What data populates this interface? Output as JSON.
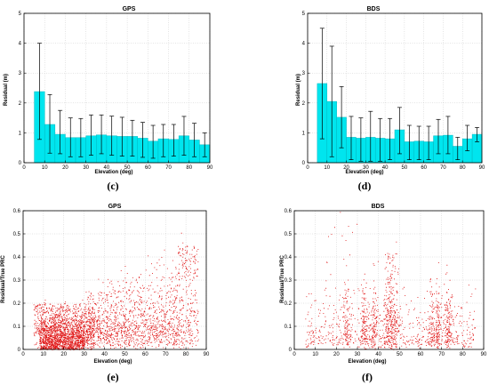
{
  "colors": {
    "bar_fill": "#00e5ee",
    "bar_stroke": "#00b8c0",
    "error_bar": "#000000",
    "scatter": "#e01010",
    "frame": "#000000"
  },
  "chart_data": [
    {
      "type": "bar",
      "panel": "(c)",
      "title": "GPS",
      "xlabel": "Elevation (deg)",
      "ylabel": "Residual (m)",
      "xlim": [
        0,
        90
      ],
      "ylim": [
        0,
        5
      ],
      "xticks": [
        "0",
        "10",
        "20",
        "30",
        "40",
        "50",
        "60",
        "70",
        "80",
        "90"
      ],
      "yticks": [
        "0",
        "1",
        "2",
        "3",
        "4",
        "5"
      ],
      "x": [
        7.5,
        12.5,
        17.5,
        22.5,
        27.5,
        32.5,
        37.5,
        42.5,
        47.5,
        52.5,
        57.5,
        62.5,
        67.5,
        72.5,
        77.5,
        82.5,
        87.5
      ],
      "values": [
        2.38,
        1.28,
        0.95,
        0.84,
        0.84,
        0.9,
        0.93,
        0.9,
        0.88,
        0.88,
        0.82,
        0.72,
        0.8,
        0.78,
        0.9,
        0.76,
        0.6
      ],
      "err_low": [
        0.78,
        0.32,
        0.3,
        0.2,
        0.2,
        0.25,
        0.3,
        0.25,
        0.22,
        0.22,
        0.18,
        0.15,
        0.2,
        0.22,
        0.25,
        0.2,
        0.2
      ],
      "err_high": [
        4.0,
        2.28,
        1.75,
        1.5,
        1.48,
        1.6,
        1.6,
        1.56,
        1.52,
        1.42,
        1.35,
        1.25,
        1.28,
        1.28,
        1.55,
        1.32,
        1.0
      ],
      "grid": true
    },
    {
      "type": "bar",
      "panel": "(d)",
      "title": "BDS",
      "xlabel": "Elevation (deg)",
      "ylabel": "Residual (m)",
      "xlim": [
        0,
        90
      ],
      "ylim": [
        0,
        5
      ],
      "xticks": [
        "0",
        "10",
        "20",
        "30",
        "40",
        "50",
        "60",
        "70",
        "80",
        "90"
      ],
      "yticks": [
        "0",
        "1",
        "2",
        "3",
        "4",
        "5"
      ],
      "x": [
        7.5,
        12.5,
        17.5,
        22.5,
        27.5,
        32.5,
        37.5,
        42.5,
        47.5,
        52.5,
        57.5,
        62.5,
        67.5,
        72.5,
        77.5,
        82.5,
        87.5
      ],
      "values": [
        2.65,
        2.05,
        1.52,
        0.85,
        0.82,
        0.85,
        0.82,
        0.8,
        1.1,
        0.7,
        0.72,
        0.7,
        0.9,
        0.92,
        0.55,
        0.8,
        0.95
      ],
      "err_low": [
        0.8,
        0.2,
        0.5,
        0.1,
        0.05,
        0.05,
        0.05,
        0.1,
        0.3,
        0.1,
        0.1,
        0.1,
        0.3,
        0.3,
        0.1,
        0.4,
        0.7
      ],
      "err_high": [
        4.5,
        3.9,
        2.55,
        1.55,
        1.5,
        1.72,
        1.48,
        1.48,
        1.85,
        1.25,
        1.22,
        1.22,
        1.45,
        1.55,
        0.85,
        1.25,
        1.18
      ],
      "grid": true
    },
    {
      "type": "scatter",
      "panel": "(e)",
      "title": "GPS",
      "xlabel": "Elevation (deg)",
      "ylabel": "Residual/True PRC",
      "xlim": [
        0,
        90
      ],
      "ylim": [
        0,
        0.6
      ],
      "xticks": [
        "0",
        "10",
        "20",
        "30",
        "40",
        "50",
        "60",
        "70",
        "80",
        "90"
      ],
      "yticks": [
        "0",
        "0.1",
        "0.2",
        "0.3",
        "0.4",
        "0.5",
        "0.6"
      ],
      "point_count": 4200,
      "x_range": [
        5,
        86
      ],
      "grid": true
    },
    {
      "type": "scatter",
      "panel": "(f)",
      "title": "BDS",
      "xlabel": "Elevation (deg)",
      "ylabel": "Residual/True PRC",
      "xlim": [
        0,
        90
      ],
      "ylim": [
        0,
        0.6
      ],
      "xticks": [
        "0",
        "10",
        "20",
        "30",
        "40",
        "50",
        "60",
        "70",
        "80",
        "90"
      ],
      "yticks": [
        "0",
        "0.1",
        "0.2",
        "0.3",
        "0.4",
        "0.5",
        "0.6"
      ],
      "point_count": 3600,
      "x_range": [
        5,
        86
      ],
      "grid": true
    }
  ]
}
